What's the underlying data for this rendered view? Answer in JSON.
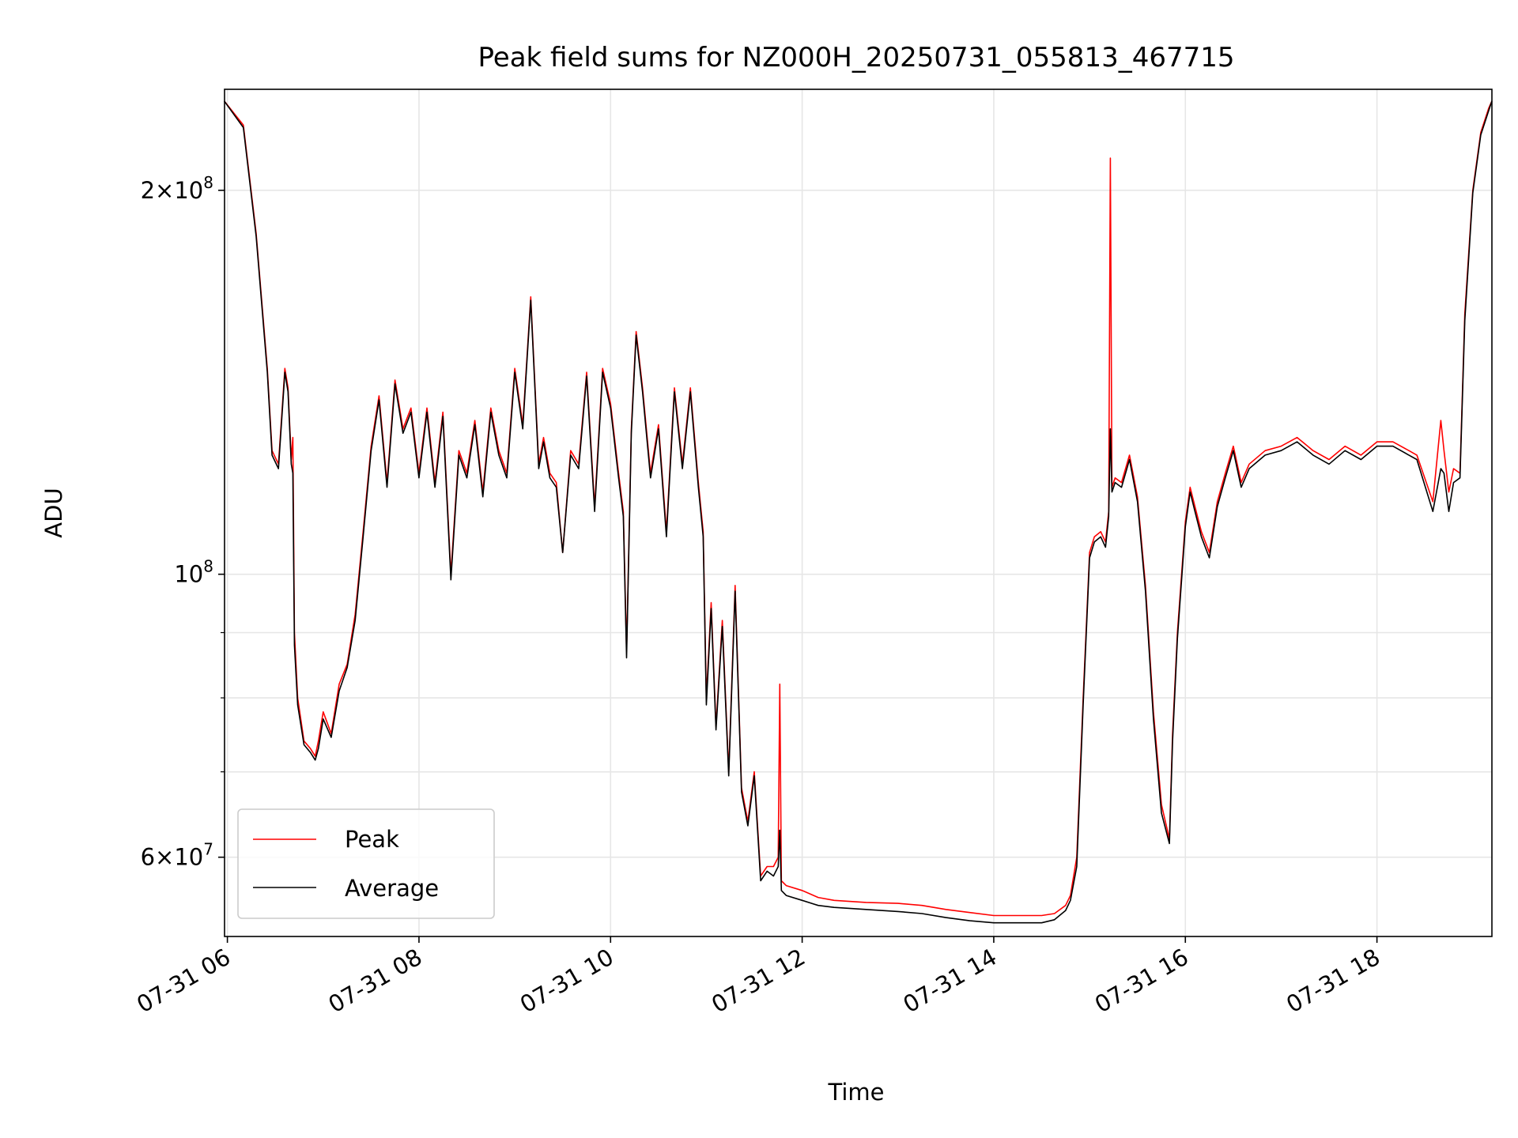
{
  "chart_data": {
    "type": "line",
    "title": "Peak field sums for NZ000H_20250731_055813_467715",
    "xlabel": "Time",
    "ylabel": "ADU",
    "y_scale": "log",
    "ylim": [
      52000000,
      240000000
    ],
    "xlim": [
      "2025-07-31 05:58:13",
      "2025-07-31 19:12:00"
    ],
    "grid": true,
    "legend_position": "lower-left",
    "x_ticks": [
      {
        "value": "2025-07-31 06:00",
        "label": "07-31 06"
      },
      {
        "value": "2025-07-31 08:00",
        "label": "07-31 08"
      },
      {
        "value": "2025-07-31 10:00",
        "label": "07-31 10"
      },
      {
        "value": "2025-07-31 12:00",
        "label": "07-31 12"
      },
      {
        "value": "2025-07-31 14:00",
        "label": "07-31 14"
      },
      {
        "value": "2025-07-31 16:00",
        "label": "07-31 16"
      },
      {
        "value": "2025-07-31 18:00",
        "label": "07-31 18"
      }
    ],
    "y_ticks": [
      {
        "value": 60000000,
        "base": "6",
        "exp": "7"
      },
      {
        "value": 100000000,
        "base": "",
        "exp": "8"
      },
      {
        "value": 200000000,
        "base": "2",
        "exp": "8"
      }
    ],
    "y_minor_ticks": [
      70000000,
      80000000,
      90000000
    ],
    "series": [
      {
        "name": "Peak",
        "color": "#ff0000",
        "x": [
          "2025-07-31 05:58",
          "2025-07-31 06:10",
          "2025-07-31 06:18",
          "2025-07-31 06:25",
          "2025-07-31 06:28",
          "2025-07-31 06:32",
          "2025-07-31 06:36",
          "2025-07-31 06:38",
          "2025-07-31 06:40",
          "2025-07-31 06:41",
          "2025-07-31 06:42",
          "2025-07-31 06:44",
          "2025-07-31 06:48",
          "2025-07-31 06:52",
          "2025-07-31 06:55",
          "2025-07-31 06:57",
          "2025-07-31 07:00",
          "2025-07-31 07:05",
          "2025-07-31 07:10",
          "2025-07-31 07:15",
          "2025-07-31 07:20",
          "2025-07-31 07:25",
          "2025-07-31 07:30",
          "2025-07-31 07:35",
          "2025-07-31 07:40",
          "2025-07-31 07:45",
          "2025-07-31 07:50",
          "2025-07-31 07:55",
          "2025-07-31 08:00",
          "2025-07-31 08:05",
          "2025-07-31 08:10",
          "2025-07-31 08:15",
          "2025-07-31 08:20",
          "2025-07-31 08:25",
          "2025-07-31 08:30",
          "2025-07-31 08:35",
          "2025-07-31 08:40",
          "2025-07-31 08:45",
          "2025-07-31 08:50",
          "2025-07-31 08:55",
          "2025-07-31 09:00",
          "2025-07-31 09:05",
          "2025-07-31 09:10",
          "2025-07-31 09:15",
          "2025-07-31 09:18",
          "2025-07-31 09:22",
          "2025-07-31 09:26",
          "2025-07-31 09:30",
          "2025-07-31 09:35",
          "2025-07-31 09:40",
          "2025-07-31 09:45",
          "2025-07-31 09:50",
          "2025-07-31 09:55",
          "2025-07-31 10:00",
          "2025-07-31 10:05",
          "2025-07-31 10:08",
          "2025-07-31 10:10",
          "2025-07-31 10:13",
          "2025-07-31 10:16",
          "2025-07-31 10:20",
          "2025-07-31 10:25",
          "2025-07-31 10:30",
          "2025-07-31 10:35",
          "2025-07-31 10:40",
          "2025-07-31 10:45",
          "2025-07-31 10:50",
          "2025-07-31 10:55",
          "2025-07-31 10:58",
          "2025-07-31 11:00",
          "2025-07-31 11:03",
          "2025-07-31 11:06",
          "2025-07-31 11:10",
          "2025-07-31 11:14",
          "2025-07-31 11:18",
          "2025-07-31 11:22",
          "2025-07-31 11:26",
          "2025-07-31 11:30",
          "2025-07-31 11:34",
          "2025-07-31 11:38",
          "2025-07-31 11:42",
          "2025-07-31 11:45",
          "2025-07-31 11:46",
          "2025-07-31 11:47",
          "2025-07-31 11:50",
          "2025-07-31 12:00",
          "2025-07-31 12:10",
          "2025-07-31 12:20",
          "2025-07-31 12:40",
          "2025-07-31 13:00",
          "2025-07-31 13:15",
          "2025-07-31 13:30",
          "2025-07-31 13:45",
          "2025-07-31 14:00",
          "2025-07-31 14:15",
          "2025-07-31 14:30",
          "2025-07-31 14:38",
          "2025-07-31 14:45",
          "2025-07-31 14:48",
          "2025-07-31 14:52",
          "2025-07-31 14:56",
          "2025-07-31 15:00",
          "2025-07-31 15:03",
          "2025-07-31 15:07",
          "2025-07-31 15:10",
          "2025-07-31 15:12",
          "2025-07-31 15:13",
          "2025-07-31 15:14",
          "2025-07-31 15:16",
          "2025-07-31 15:20",
          "2025-07-31 15:25",
          "2025-07-31 15:30",
          "2025-07-31 15:35",
          "2025-07-31 15:40",
          "2025-07-31 15:45",
          "2025-07-31 15:50",
          "2025-07-31 15:52",
          "2025-07-31 15:55",
          "2025-07-31 16:00",
          "2025-07-31 16:03",
          "2025-07-31 16:06",
          "2025-07-31 16:10",
          "2025-07-31 16:15",
          "2025-07-31 16:20",
          "2025-07-31 16:25",
          "2025-07-31 16:30",
          "2025-07-31 16:35",
          "2025-07-31 16:40",
          "2025-07-31 16:50",
          "2025-07-31 17:00",
          "2025-07-31 17:10",
          "2025-07-31 17:20",
          "2025-07-31 17:30",
          "2025-07-31 17:40",
          "2025-07-31 17:50",
          "2025-07-31 18:00",
          "2025-07-31 18:10",
          "2025-07-31 18:20",
          "2025-07-31 18:25",
          "2025-07-31 18:35",
          "2025-07-31 18:40",
          "2025-07-31 18:42",
          "2025-07-31 18:45",
          "2025-07-31 18:48",
          "2025-07-31 18:52",
          "2025-07-31 18:55",
          "2025-07-31 19:00",
          "2025-07-31 19:05",
          "2025-07-31 19:10",
          "2025-07-31 19:12"
        ],
        "values": [
          235000000,
          225000000,
          185000000,
          145000000,
          125000000,
          122000000,
          145000000,
          140000000,
          123000000,
          128000000,
          90000000,
          80000000,
          74000000,
          73000000,
          72000000,
          74000000,
          78000000,
          75000000,
          82000000,
          85000000,
          93000000,
          108000000,
          126000000,
          138000000,
          118000000,
          142000000,
          130000000,
          135000000,
          120000000,
          135000000,
          118000000,
          134000000,
          100000000,
          125000000,
          120000000,
          132000000,
          116000000,
          135000000,
          125000000,
          120000000,
          145000000,
          131000000,
          165000000,
          122000000,
          128000000,
          120000000,
          118000000,
          104000000,
          125000000,
          122000000,
          144000000,
          113000000,
          145000000,
          136000000,
          120000000,
          112000000,
          87000000,
          130000000,
          155000000,
          140000000,
          120000000,
          131000000,
          108000000,
          140000000,
          122000000,
          140000000,
          118000000,
          108000000,
          80000000,
          95000000,
          76000000,
          92000000,
          70000000,
          98000000,
          68000000,
          64000000,
          70000000,
          58000000,
          59000000,
          59000000,
          60000000,
          82000000,
          57500000,
          57000000,
          56500000,
          55800000,
          55500000,
          55300000,
          55200000,
          55000000,
          54600000,
          54300000,
          54000000,
          54000000,
          54000000,
          54200000,
          55000000,
          56000000,
          60000000,
          80000000,
          104000000,
          107000000,
          108000000,
          106000000,
          112000000,
          212000000,
          117000000,
          119000000,
          118000000,
          124000000,
          115000000,
          98000000,
          78000000,
          66000000,
          62000000,
          75000000,
          90000000,
          110000000,
          117000000,
          113000000,
          108000000,
          104000000,
          114000000,
          120000000,
          126000000,
          118000000,
          122000000,
          125000000,
          126000000,
          128000000,
          125000000,
          123000000,
          126000000,
          124000000,
          127000000,
          127000000,
          125000000,
          124000000,
          114000000,
          132000000,
          125000000,
          116000000,
          121000000,
          120000000,
          160000000,
          200000000,
          222000000,
          232000000,
          235000000
        ]
      },
      {
        "name": "Average",
        "color": "#000000",
        "x": [
          "2025-07-31 05:58",
          "2025-07-31 06:10",
          "2025-07-31 06:18",
          "2025-07-31 06:25",
          "2025-07-31 06:28",
          "2025-07-31 06:32",
          "2025-07-31 06:36",
          "2025-07-31 06:38",
          "2025-07-31 06:40",
          "2025-07-31 06:41",
          "2025-07-31 06:42",
          "2025-07-31 06:44",
          "2025-07-31 06:48",
          "2025-07-31 06:52",
          "2025-07-31 06:55",
          "2025-07-31 06:57",
          "2025-07-31 07:00",
          "2025-07-31 07:05",
          "2025-07-31 07:10",
          "2025-07-31 07:15",
          "2025-07-31 07:20",
          "2025-07-31 07:25",
          "2025-07-31 07:30",
          "2025-07-31 07:35",
          "2025-07-31 07:40",
          "2025-07-31 07:45",
          "2025-07-31 07:50",
          "2025-07-31 07:55",
          "2025-07-31 08:00",
          "2025-07-31 08:05",
          "2025-07-31 08:10",
          "2025-07-31 08:15",
          "2025-07-31 08:20",
          "2025-07-31 08:25",
          "2025-07-31 08:30",
          "2025-07-31 08:35",
          "2025-07-31 08:40",
          "2025-07-31 08:45",
          "2025-07-31 08:50",
          "2025-07-31 08:55",
          "2025-07-31 09:00",
          "2025-07-31 09:05",
          "2025-07-31 09:10",
          "2025-07-31 09:15",
          "2025-07-31 09:18",
          "2025-07-31 09:22",
          "2025-07-31 09:26",
          "2025-07-31 09:30",
          "2025-07-31 09:35",
          "2025-07-31 09:40",
          "2025-07-31 09:45",
          "2025-07-31 09:50",
          "2025-07-31 09:55",
          "2025-07-31 10:00",
          "2025-07-31 10:05",
          "2025-07-31 10:08",
          "2025-07-31 10:10",
          "2025-07-31 10:13",
          "2025-07-31 10:16",
          "2025-07-31 10:20",
          "2025-07-31 10:25",
          "2025-07-31 10:30",
          "2025-07-31 10:35",
          "2025-07-31 10:40",
          "2025-07-31 10:45",
          "2025-07-31 10:50",
          "2025-07-31 10:55",
          "2025-07-31 10:58",
          "2025-07-31 11:00",
          "2025-07-31 11:03",
          "2025-07-31 11:06",
          "2025-07-31 11:10",
          "2025-07-31 11:14",
          "2025-07-31 11:18",
          "2025-07-31 11:22",
          "2025-07-31 11:26",
          "2025-07-31 11:30",
          "2025-07-31 11:34",
          "2025-07-31 11:38",
          "2025-07-31 11:42",
          "2025-07-31 11:45",
          "2025-07-31 11:46",
          "2025-07-31 11:47",
          "2025-07-31 11:50",
          "2025-07-31 12:00",
          "2025-07-31 12:10",
          "2025-07-31 12:20",
          "2025-07-31 12:40",
          "2025-07-31 13:00",
          "2025-07-31 13:15",
          "2025-07-31 13:30",
          "2025-07-31 13:45",
          "2025-07-31 14:00",
          "2025-07-31 14:15",
          "2025-07-31 14:30",
          "2025-07-31 14:38",
          "2025-07-31 14:45",
          "2025-07-31 14:48",
          "2025-07-31 14:52",
          "2025-07-31 14:56",
          "2025-07-31 15:00",
          "2025-07-31 15:03",
          "2025-07-31 15:07",
          "2025-07-31 15:10",
          "2025-07-31 15:12",
          "2025-07-31 15:13",
          "2025-07-31 15:14",
          "2025-07-31 15:16",
          "2025-07-31 15:20",
          "2025-07-31 15:25",
          "2025-07-31 15:30",
          "2025-07-31 15:35",
          "2025-07-31 15:40",
          "2025-07-31 15:45",
          "2025-07-31 15:50",
          "2025-07-31 15:52",
          "2025-07-31 15:55",
          "2025-07-31 16:00",
          "2025-07-31 16:03",
          "2025-07-31 16:06",
          "2025-07-31 16:10",
          "2025-07-31 16:15",
          "2025-07-31 16:20",
          "2025-07-31 16:25",
          "2025-07-31 16:30",
          "2025-07-31 16:35",
          "2025-07-31 16:40",
          "2025-07-31 16:50",
          "2025-07-31 17:00",
          "2025-07-31 17:10",
          "2025-07-31 17:20",
          "2025-07-31 17:30",
          "2025-07-31 17:40",
          "2025-07-31 17:50",
          "2025-07-31 18:00",
          "2025-07-31 18:10",
          "2025-07-31 18:20",
          "2025-07-31 18:25",
          "2025-07-31 18:35",
          "2025-07-31 18:40",
          "2025-07-31 18:42",
          "2025-07-31 18:45",
          "2025-07-31 18:48",
          "2025-07-31 18:52",
          "2025-07-31 18:55",
          "2025-07-31 19:00",
          "2025-07-31 19:05",
          "2025-07-31 19:10",
          "2025-07-31 19:12"
        ],
        "values": [
          235000000,
          224000000,
          184000000,
          144000000,
          124000000,
          121000000,
          144000000,
          139000000,
          122000000,
          120000000,
          88000000,
          79000000,
          73500000,
          72500000,
          71500000,
          73000000,
          77000000,
          74500000,
          81000000,
          84500000,
          92000000,
          107000000,
          125000000,
          137000000,
          117000000,
          141000000,
          129000000,
          134000000,
          119000000,
          134000000,
          117000000,
          133000000,
          99000000,
          124000000,
          119000000,
          131000000,
          115000000,
          134000000,
          124000000,
          119000000,
          144000000,
          130000000,
          164000000,
          121000000,
          127000000,
          119000000,
          117000000,
          104000000,
          124000000,
          121000000,
          143000000,
          112000000,
          144000000,
          135000000,
          119000000,
          111000000,
          86000000,
          129000000,
          154000000,
          139000000,
          119000000,
          130000000,
          107000000,
          139000000,
          121000000,
          139000000,
          117000000,
          107000000,
          79000000,
          94000000,
          75500000,
          91000000,
          69500000,
          97000000,
          67500000,
          63500000,
          69500000,
          57500000,
          58500000,
          58000000,
          59000000,
          63000000,
          56500000,
          56000000,
          55500000,
          55000000,
          54800000,
          54600000,
          54400000,
          54200000,
          53800000,
          53500000,
          53300000,
          53300000,
          53300000,
          53600000,
          54500000,
          55500000,
          59000000,
          79000000,
          103000000,
          106000000,
          107000000,
          105000000,
          111000000,
          130000000,
          116000000,
          118000000,
          117000000,
          123000000,
          114000000,
          97000000,
          77000000,
          65000000,
          61500000,
          74000000,
          89000000,
          109000000,
          116000000,
          112000000,
          107000000,
          103000000,
          113000000,
          119000000,
          125000000,
          117000000,
          121000000,
          124000000,
          125000000,
          127000000,
          124000000,
          122000000,
          125000000,
          123000000,
          126000000,
          126000000,
          124000000,
          123000000,
          112000000,
          121000000,
          120000000,
          112000000,
          118000000,
          119000000,
          158000000,
          199000000,
          221000000,
          231000000,
          235000000
        ]
      }
    ]
  }
}
